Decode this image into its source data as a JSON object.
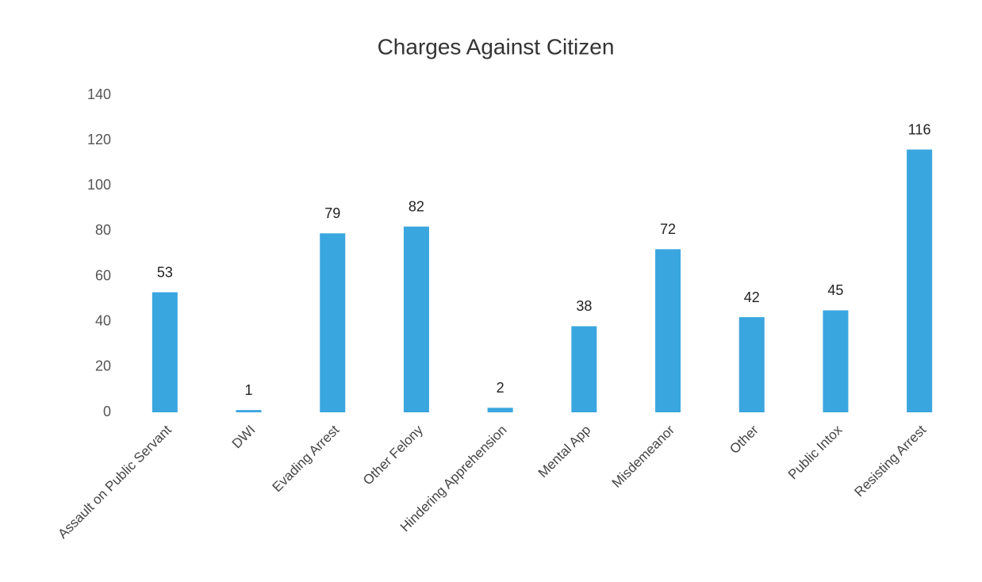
{
  "chart_data": {
    "type": "bar",
    "title": "Charges Against Citizen",
    "categories": [
      "Assault on Public Servant",
      "DWI",
      "Evading Arrest",
      "Other Felony",
      "Hindering Apprehension",
      "Mental App",
      "Misdemeanor",
      "Other",
      "Public Intox",
      "Resisting Arrest"
    ],
    "values": [
      53,
      1,
      79,
      82,
      2,
      38,
      72,
      42,
      45,
      116
    ],
    "color": "#3aa6e0",
    "ylim": [
      0,
      140
    ],
    "yticks": [
      0,
      20,
      40,
      60,
      80,
      100,
      120,
      140
    ],
    "grid": false
  }
}
